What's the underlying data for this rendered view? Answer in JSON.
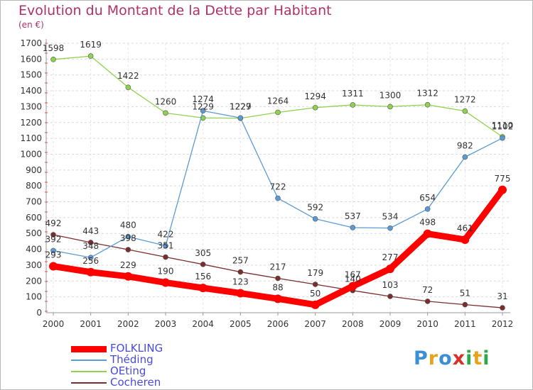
{
  "header": {
    "title": "Evolution du Montant de la Dette par Habitant",
    "subtitle": "(en €)"
  },
  "logo": {
    "text": "Proxiti",
    "colors": [
      "#3a8fd6",
      "#e9a21c",
      "#3a8fd6",
      "#d8312b",
      "#2da84a",
      "#e9a21c",
      "#2da84a"
    ]
  },
  "chart_data": {
    "type": "line",
    "title": "Evolution du Montant de la Dette par Habitant",
    "subtitle": "(en €)",
    "xlabel": "",
    "ylabel": "",
    "x": [
      "2000",
      "2001",
      "2002",
      "2003",
      "2004",
      "2005",
      "2006",
      "2007",
      "2008",
      "2009",
      "2010",
      "2011",
      "2012"
    ],
    "ylim": [
      0,
      1700
    ],
    "yticks": [
      0,
      100,
      200,
      300,
      400,
      500,
      600,
      700,
      800,
      900,
      1000,
      1100,
      1200,
      1300,
      1400,
      1500,
      1600,
      1700
    ],
    "grid": "horizontal dashed",
    "legend_position": "bottom-left",
    "series": [
      {
        "name": "FOLKLING",
        "color": "#ff0000",
        "values": [
          293,
          256,
          229,
          190,
          156,
          123,
          88,
          50,
          167,
          277,
          498,
          461,
          775
        ]
      },
      {
        "name": "Théding",
        "color": "#5b9bd5",
        "values": [
          392,
          348,
          480,
          422,
          1274,
          1229,
          722,
          592,
          537,
          534,
          654,
          982,
          1102
        ]
      },
      {
        "name": "OEting",
        "color": "#8fd14f",
        "values": [
          1598,
          1619,
          1422,
          1260,
          1229,
          1227,
          1264,
          1294,
          1311,
          1300,
          1312,
          1272,
          1110
        ]
      },
      {
        "name": "Cocheren",
        "color": "#7b2d2d",
        "values": [
          492,
          443,
          398,
          351,
          305,
          257,
          217,
          179,
          140,
          103,
          72,
          51,
          31
        ]
      }
    ]
  }
}
